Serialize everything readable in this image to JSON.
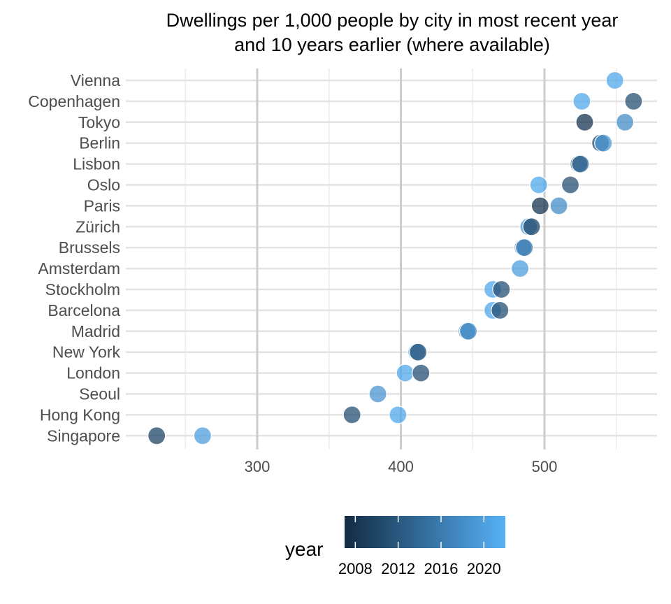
{
  "chart_data": {
    "type": "scatter",
    "title_lines": [
      "Dwellings per 1,000 people by city in most recent year",
      "and 10 years earlier (where available)"
    ],
    "xlabel": "",
    "ylabel": "",
    "xlim": [
      210,
      580
    ],
    "x_ticks": [
      {
        "value": 300,
        "label": "300"
      },
      {
        "value": 400,
        "label": "400"
      },
      {
        "value": 500,
        "label": "500"
      }
    ],
    "grid": true,
    "cities": [
      "Vienna",
      "Copenhagen",
      "Tokyo",
      "Berlin",
      "Lisbon",
      "Oslo",
      "Paris",
      "Zürich",
      "Brussels",
      "Amsterdam",
      "Stockholm",
      "Barcelona",
      "Madrid",
      "New York",
      "London",
      "Seoul",
      "Hong Kong",
      "Singapore"
    ],
    "points": [
      {
        "city": "Vienna",
        "value": 549,
        "year": 2021
      },
      {
        "city": "Copenhagen",
        "value": 526,
        "year": 2021
      },
      {
        "city": "Copenhagen",
        "value": 562,
        "year": 2011
      },
      {
        "city": "Tokyo",
        "value": 528,
        "year": 2008
      },
      {
        "city": "Tokyo",
        "value": 556,
        "year": 2018
      },
      {
        "city": "Berlin",
        "value": 539,
        "year": 2011
      },
      {
        "city": "Berlin",
        "value": 541,
        "year": 2019
      },
      {
        "city": "Lisbon",
        "value": 524,
        "year": 2011
      },
      {
        "city": "Lisbon",
        "value": 525,
        "year": 2014
      },
      {
        "city": "Oslo",
        "value": 496,
        "year": 2021
      },
      {
        "city": "Oslo",
        "value": 518,
        "year": 2011
      },
      {
        "city": "Paris",
        "value": 497,
        "year": 2008
      },
      {
        "city": "Paris",
        "value": 510,
        "year": 2018
      },
      {
        "city": "Zürich",
        "value": 489,
        "year": 2020
      },
      {
        "city": "Zürich",
        "value": 491,
        "year": 2010
      },
      {
        "city": "Brussels",
        "value": 485,
        "year": 2019
      },
      {
        "city": "Brussels",
        "value": 486,
        "year": 2016
      },
      {
        "city": "Amsterdam",
        "value": 483,
        "year": 2020
      },
      {
        "city": "Stockholm",
        "value": 464,
        "year": 2021
      },
      {
        "city": "Stockholm",
        "value": 470,
        "year": 2011
      },
      {
        "city": "Barcelona",
        "value": 464,
        "year": 2021
      },
      {
        "city": "Barcelona",
        "value": 469,
        "year": 2011
      },
      {
        "city": "Madrid",
        "value": 446,
        "year": 2016
      },
      {
        "city": "Madrid",
        "value": 447,
        "year": 2018
      },
      {
        "city": "New York",
        "value": 411,
        "year": 2021
      },
      {
        "city": "New York",
        "value": 412,
        "year": 2011
      },
      {
        "city": "London",
        "value": 403,
        "year": 2021
      },
      {
        "city": "London",
        "value": 414,
        "year": 2011
      },
      {
        "city": "Seoul",
        "value": 384,
        "year": 2019
      },
      {
        "city": "Hong Kong",
        "value": 366,
        "year": 2011
      },
      {
        "city": "Hong Kong",
        "value": 398,
        "year": 2021
      },
      {
        "city": "Singapore",
        "value": 230,
        "year": 2010
      },
      {
        "city": "Singapore",
        "value": 262,
        "year": 2020
      }
    ],
    "legend": {
      "title": "year",
      "placement": "bottom",
      "range": [
        2007,
        2022
      ],
      "ticks": [
        {
          "value": 2008,
          "label": "2008"
        },
        {
          "value": 2012,
          "label": "2012"
        },
        {
          "value": 2016,
          "label": "2016"
        },
        {
          "value": 2020,
          "label": "2020"
        }
      ],
      "color_low": "#132B43",
      "color_high": "#56B1F7"
    }
  }
}
